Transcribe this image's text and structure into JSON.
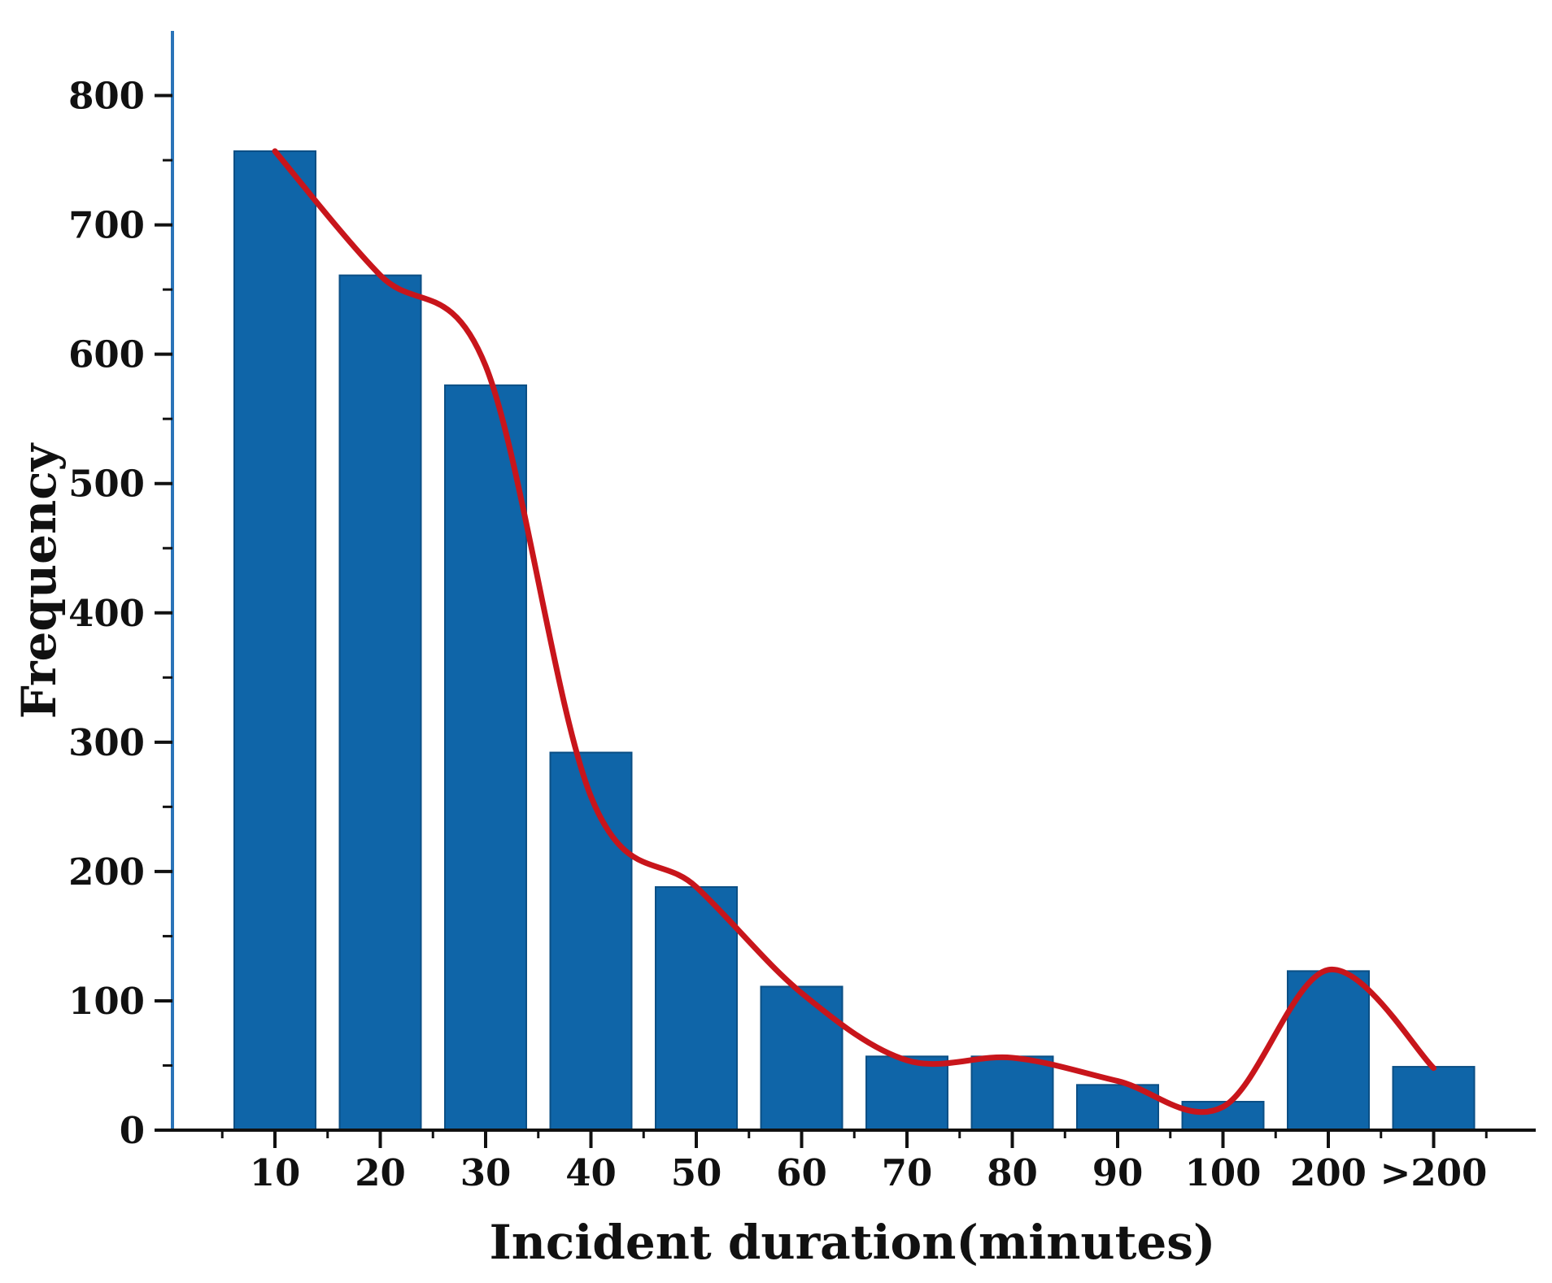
{
  "chart_data": {
    "type": "bar",
    "title": "",
    "xlabel": "Incident duration(minutes)",
    "ylabel": "Frequency",
    "categories": [
      "10",
      "20",
      "30",
      "40",
      "50",
      "60",
      "70",
      "80",
      "90",
      "100",
      "200",
      ">200"
    ],
    "values": [
      757,
      661,
      576,
      292,
      188,
      111,
      57,
      57,
      35,
      22,
      123,
      49
    ],
    "ylim": [
      0,
      850
    ],
    "yticks": [
      "0",
      "100",
      "200",
      "300",
      "400",
      "500",
      "600",
      "700",
      "800"
    ],
    "trend_line": {
      "name": "fitted curve",
      "values": [
        757,
        661,
        591,
        258,
        188,
        106,
        54,
        56,
        38,
        18,
        124,
        48
      ]
    },
    "grid": false,
    "colors": {
      "bar": "#0f65a8",
      "bar_edge": "#0b4f85",
      "trend": "#c8151b",
      "axis": "#111111",
      "left_axis": "#2a74b8"
    }
  }
}
